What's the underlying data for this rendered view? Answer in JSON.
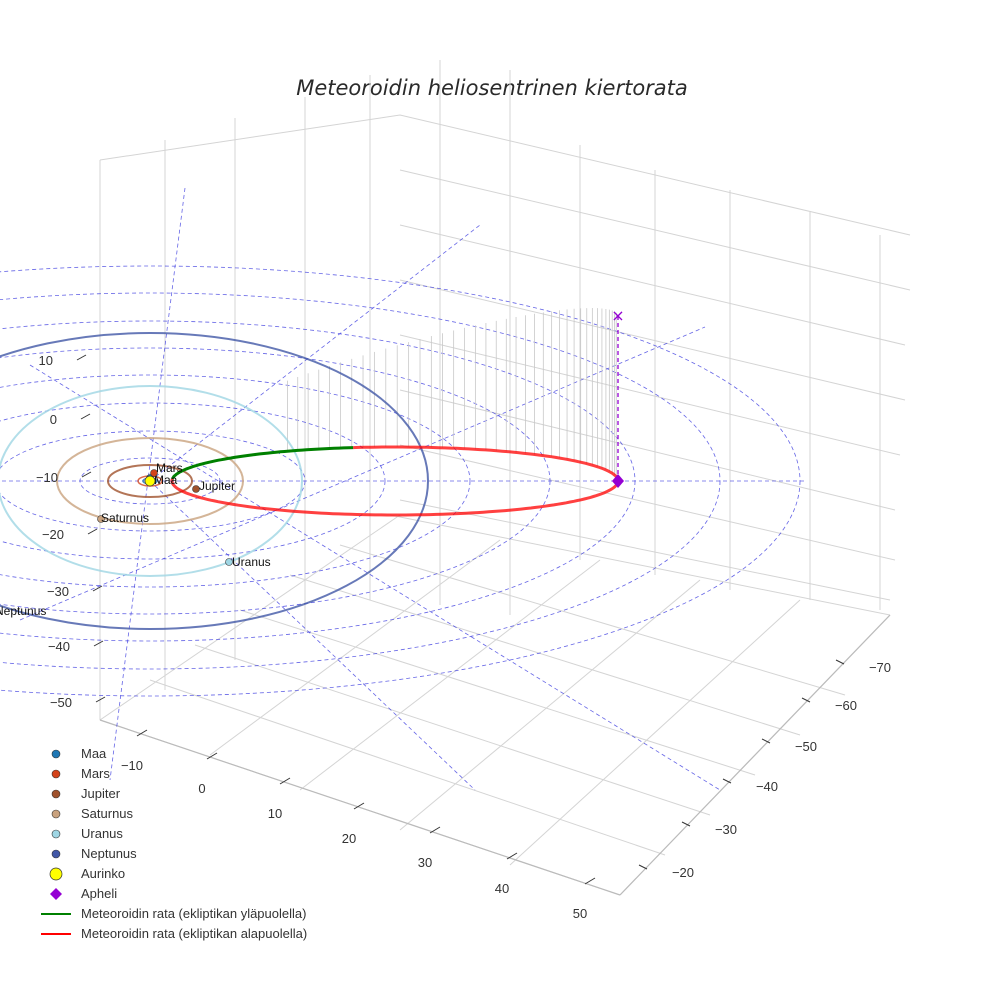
{
  "chart_data": {
    "type": "scatter",
    "title": "Meteoroidin heliosentrinen kiertorata",
    "projection": "3d",
    "axes": {
      "x_ticks": [
        "−10",
        "0",
        "10",
        "20",
        "30",
        "40",
        "50"
      ],
      "y_ticks": [
        "−20",
        "−30",
        "−40",
        "−50",
        "−60",
        "−70"
      ],
      "z_ticks": [
        "10",
        "0",
        "−10",
        "−20",
        "−30",
        "−40",
        "−50"
      ]
    },
    "planets": [
      {
        "name": "Maa",
        "label": "Maa",
        "color": "#1f77b4",
        "orbit_color": "#1f77b4"
      },
      {
        "name": "Mars",
        "label": "Mars",
        "color": "#d3431b",
        "orbit_color": "#d3431b"
      },
      {
        "name": "Jupiter",
        "label": "Jupiter",
        "color": "#a0522d",
        "orbit_color": "#a0522d"
      },
      {
        "name": "Saturnus",
        "label": "Saturnus",
        "color": "#c9a27e",
        "orbit_color": "#c9a27e"
      },
      {
        "name": "Uranus",
        "label": "Uranus",
        "color": "#9fd6e4",
        "orbit_color": "#9fd6e4"
      },
      {
        "name": "Neptunus",
        "label": "Neptunus",
        "color": "#4157a6",
        "orbit_color": "#4157a6"
      }
    ],
    "legend": {
      "placement": "bottom-left",
      "entries": [
        {
          "label": "Maa",
          "marker": "circle",
          "color": "#1f77b4"
        },
        {
          "label": "Mars",
          "marker": "circle",
          "color": "#d3431b"
        },
        {
          "label": "Jupiter",
          "marker": "circle",
          "color": "#a0522d"
        },
        {
          "label": "Saturnus",
          "marker": "circle",
          "color": "#c9a27e"
        },
        {
          "label": "Uranus",
          "marker": "circle",
          "color": "#9fd6e4"
        },
        {
          "label": "Neptunus",
          "marker": "circle",
          "color": "#4157a6"
        },
        {
          "label": "Aurinko",
          "marker": "circle-large",
          "color": "#ffff00"
        },
        {
          "label": "Apheli",
          "marker": "diamond",
          "color": "#9400d3"
        },
        {
          "label": "Meteoroidin rata (ekliptikan yläpuolella)",
          "marker": "line",
          "color": "#008000"
        },
        {
          "label": "Meteoroidin rata (ekliptikan alapuolella)",
          "marker": "line",
          "color": "#ff0000"
        }
      ]
    },
    "sun": {
      "name": "Aurinko",
      "color": "#ffff00"
    },
    "aphelion": {
      "name": "Apheli",
      "color": "#9400d3"
    },
    "meteoroid_orbit": [
      {
        "segment": "above ecliptic",
        "color": "#008000"
      },
      {
        "segment": "below ecliptic",
        "color": "#ff0000"
      }
    ],
    "grid": true
  }
}
